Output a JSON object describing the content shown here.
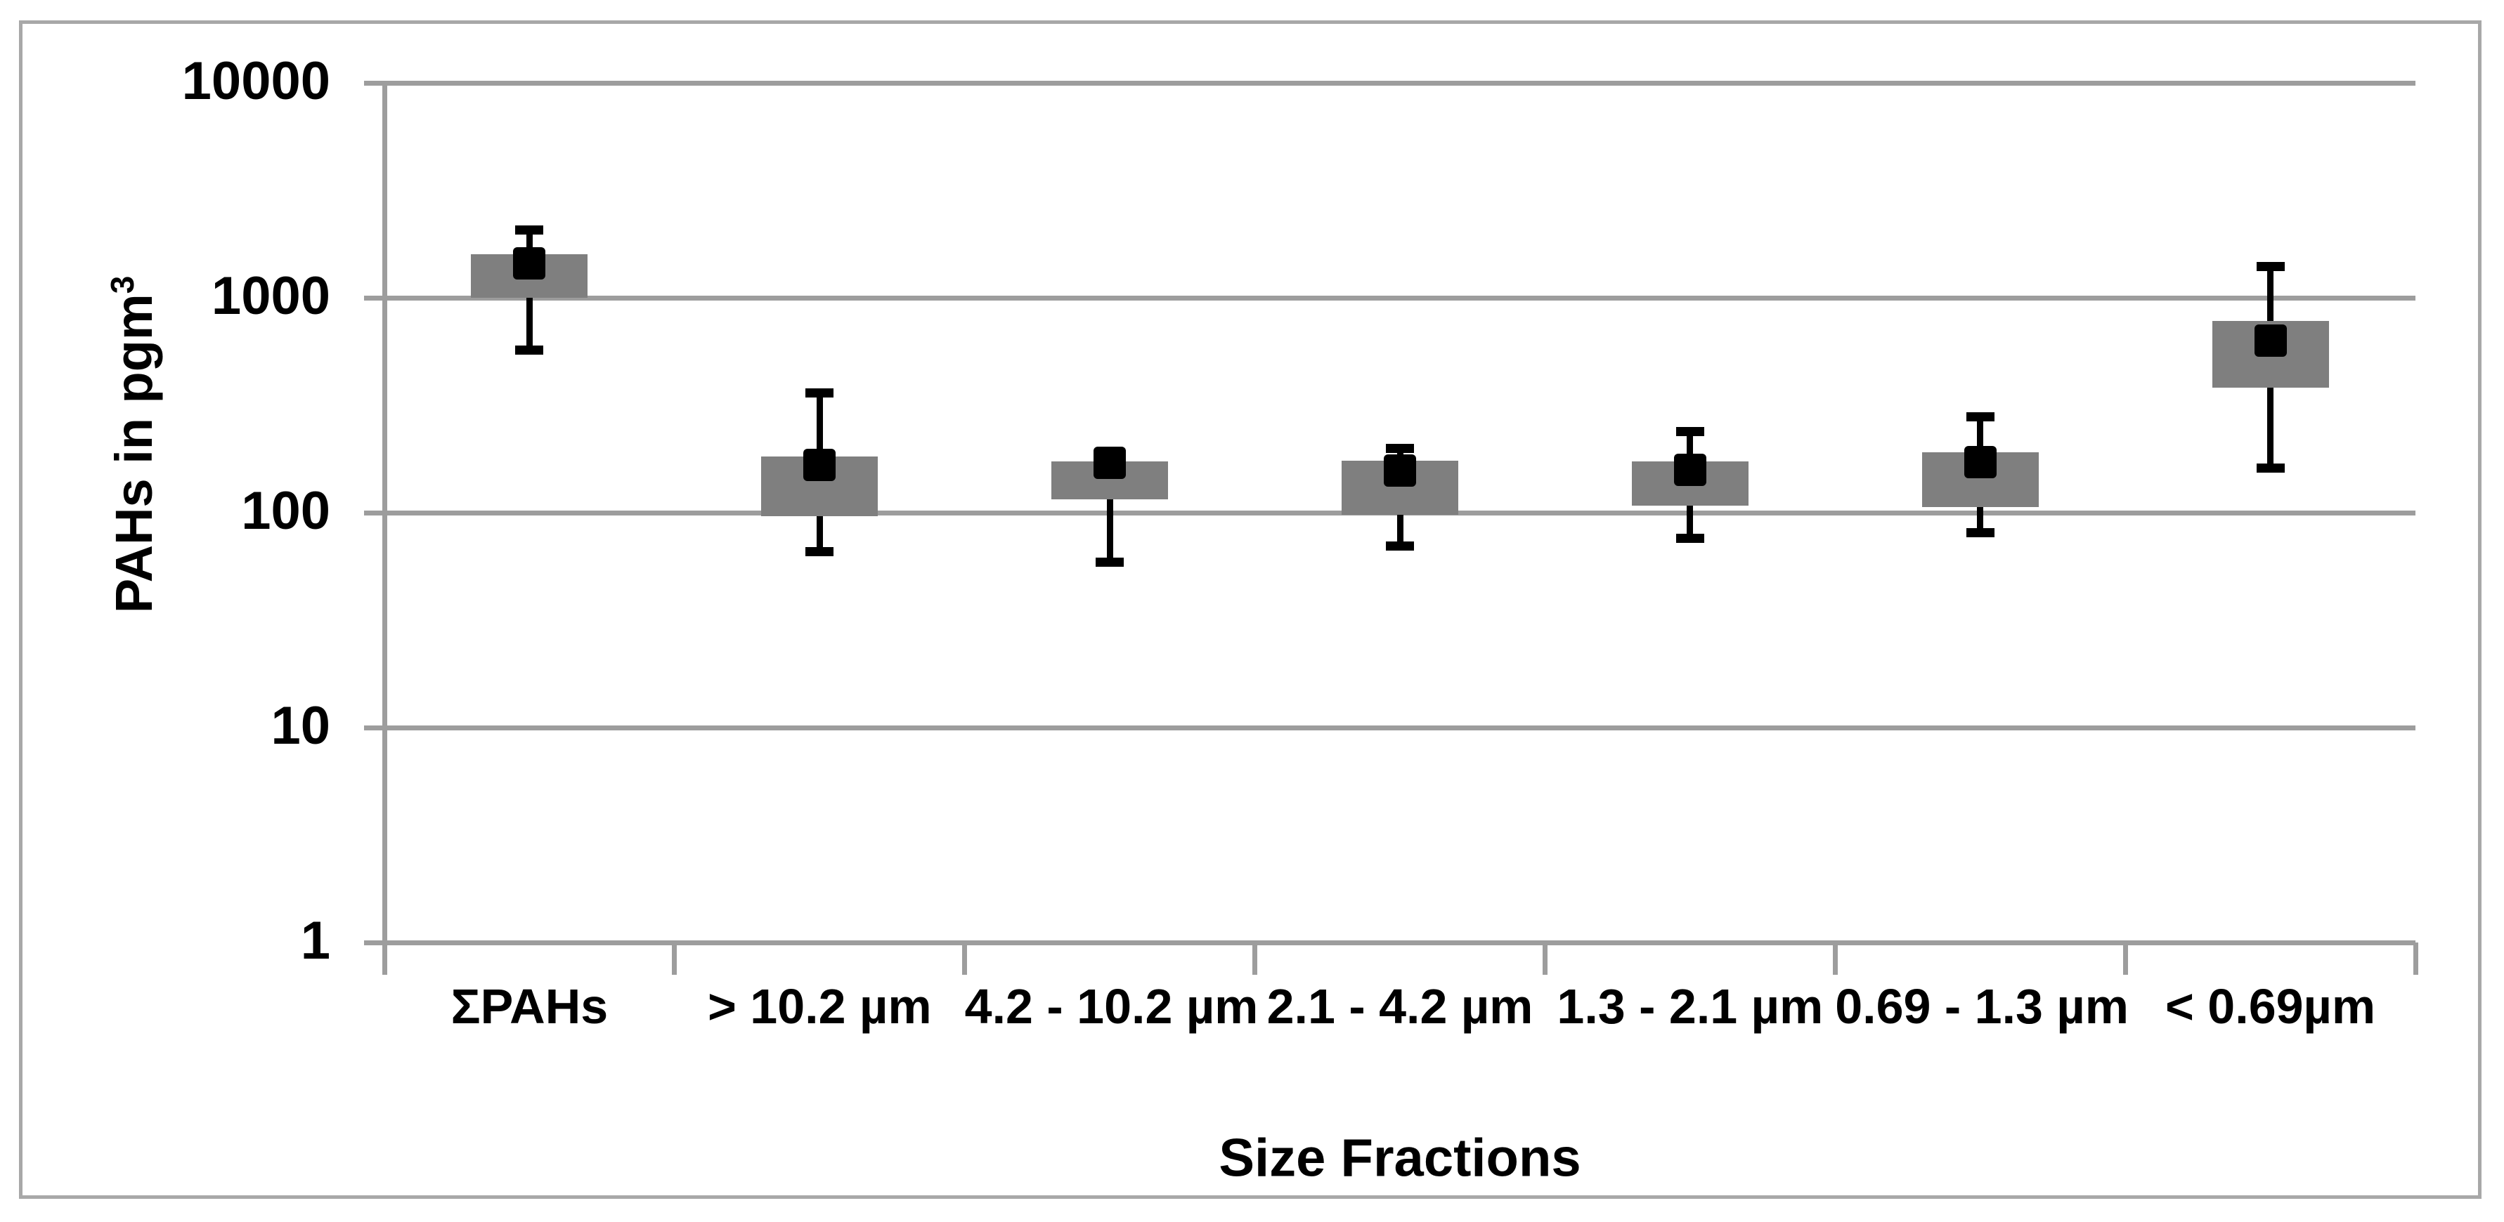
{
  "chart_data": {
    "type": "box-whisker",
    "title": "",
    "xlabel": "Size Fractions",
    "ylabel": "PAHs in pgm",
    "ylabel_superscript": "3",
    "y_scale": "log",
    "y_range": [
      1,
      10000
    ],
    "y_ticks": [
      10000,
      1000,
      100,
      10,
      1
    ],
    "grid": "horizontal-major",
    "legend": null,
    "categories": [
      "ΣPAHs",
      "> 10.2 µm",
      "4.2 - 10.2 µm",
      "2.1 - 4.2 µm",
      "1.3 - 2.1 µm",
      "0.69 - 1.3 µm",
      "< 0.69µm"
    ],
    "series": [
      {
        "category": "ΣPAHs",
        "box_low": 1000,
        "box_high": 1600,
        "marker": 1450,
        "whisker_low": 570,
        "whisker_high": 2060
      },
      {
        "category": "> 10.2 µm",
        "box_low": 96,
        "box_high": 182,
        "marker": 167,
        "whisker_low": 66,
        "whisker_high": 362
      },
      {
        "category": "4.2 - 10.2 µm",
        "box_low": 115,
        "box_high": 173,
        "marker": 170,
        "whisker_low": 59,
        "whisker_high": null
      },
      {
        "category": "2.1 - 4.2 µm",
        "box_low": 98,
        "box_high": 175,
        "marker": 157,
        "whisker_low": 70,
        "whisker_high": 199
      },
      {
        "category": "1.3 - 2.1 µm",
        "box_low": 108,
        "box_high": 173,
        "marker": 158,
        "whisker_low": 76,
        "whisker_high": 239
      },
      {
        "category": "0.69 - 1.3 µm",
        "box_low": 106,
        "box_high": 191,
        "marker": 172,
        "whisker_low": 81,
        "whisker_high": 280
      },
      {
        "category": "< 0.69µm",
        "box_low": 382,
        "box_high": 780,
        "marker": 632,
        "whisker_low": 161,
        "whisker_high": 1403
      }
    ],
    "colors": {
      "box": "#7f7f7f",
      "marker": "#000000",
      "whisker": "#000000",
      "gridline": "#9d9d9d",
      "axis": "#9d9d9d",
      "figure_border": "#a8a8a8",
      "text": "#000000",
      "background": "#ffffff"
    }
  }
}
